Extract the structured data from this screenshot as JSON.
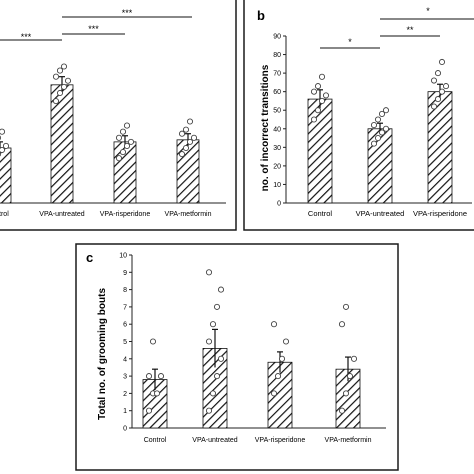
{
  "colors": {
    "frame": "#1a1a1a",
    "bar_fill": "#ffffff",
    "hatch": "#111111",
    "point_stroke": "#444444"
  },
  "chart_data": [
    {
      "panel": "a",
      "type": "bar",
      "ylabel": "",
      "categories": [
        "Control",
        "VPA-untreated",
        "VPA-risperidone",
        "VPA-metformin"
      ],
      "tick_labels": [
        "ontrol",
        "VPA-untreated",
        "VPA-risperidone",
        "VPA-metformin"
      ],
      "values": [
        27,
        58,
        30,
        31
      ],
      "errors": [
        3,
        4,
        3,
        3
      ],
      "points": [
        [
          20,
          24,
          26,
          28,
          30,
          32,
          35
        ],
        [
          50,
          54,
          57,
          60,
          62,
          65,
          67
        ],
        [
          22,
          25,
          28,
          30,
          32,
          35,
          38
        ],
        [
          24,
          27,
          30,
          32,
          34,
          36,
          40
        ]
      ],
      "ylim": [
        0,
        80
      ],
      "significance": [
        "***",
        "***",
        "***"
      ],
      "visible_partial": true
    },
    {
      "panel": "b",
      "label": "b",
      "type": "bar",
      "ylabel": "no. of incorrect transitions",
      "categories": [
        "Control",
        "VPA-untreated",
        "VPA-risperidone"
      ],
      "tick_labels": [
        "Control",
        "VPA-untreated",
        "VPA-risperidone"
      ],
      "values": [
        56,
        40,
        60
      ],
      "errors": [
        5,
        3,
        4
      ],
      "points": [
        [
          45,
          50,
          55,
          58,
          60,
          63,
          68
        ],
        [
          32,
          35,
          38,
          40,
          42,
          45,
          48,
          50
        ],
        [
          52,
          56,
          60,
          63,
          66,
          70,
          76
        ]
      ],
      "yticks": [
        0,
        10,
        20,
        30,
        40,
        50,
        60,
        70,
        80,
        90
      ],
      "ylim": [
        0,
        90
      ],
      "significance": [
        "*",
        "*",
        "**"
      ]
    },
    {
      "panel": "c",
      "label": "c",
      "type": "bar",
      "ylabel": "Total no. of grooming bouts",
      "categories": [
        "Control",
        "VPA-untreated",
        "VPA-risperidone",
        "VPA-metformin"
      ],
      "tick_labels": [
        "Control",
        "VPA-untreated",
        "VPA-risperidone",
        "VPA-metformin"
      ],
      "values": [
        2.8,
        4.6,
        3.8,
        3.4
      ],
      "errors": [
        0.6,
        1.1,
        0.6,
        0.7
      ],
      "points": [
        [
          1,
          2,
          2,
          3,
          3,
          5
        ],
        [
          1,
          2,
          3,
          4,
          5,
          6,
          7,
          8,
          9
        ],
        [
          2,
          3,
          4,
          5,
          6
        ],
        [
          1,
          2,
          3,
          4,
          6,
          7
        ]
      ],
      "yticks": [
        0,
        1,
        2,
        3,
        4,
        5,
        6,
        7,
        8,
        9,
        10
      ],
      "ylim": [
        0,
        10
      ]
    }
  ]
}
